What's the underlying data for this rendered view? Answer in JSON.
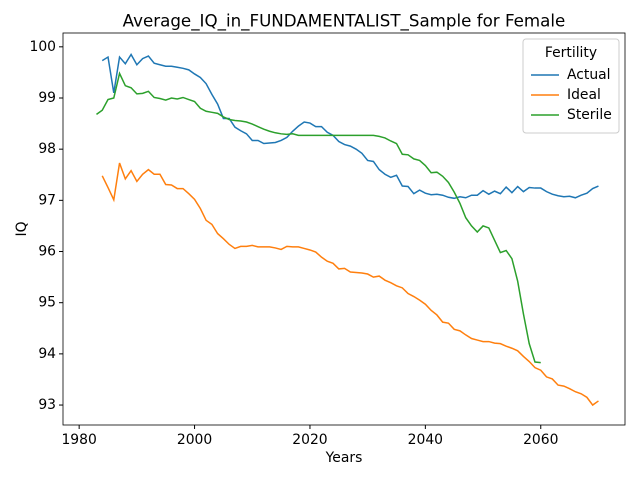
{
  "chart_data": {
    "type": "line",
    "title": "Average_IQ_in_FUNDAMENTALIST_Sample for Female",
    "xlabel": "Years",
    "ylabel": "IQ",
    "legend_title": "Fertility",
    "legend": "upper right",
    "xlim": [
      1977.2,
      2074.6
    ],
    "ylim": [
      92.61,
      100.27
    ],
    "xticks": [
      1980,
      2000,
      2020,
      2040,
      2060
    ],
    "yticks": [
      93,
      94,
      95,
      96,
      97,
      98,
      99,
      100
    ],
    "series": [
      {
        "name": "Actual",
        "color": "#1f77b4",
        "x": [
          1984,
          1985,
          1986,
          1987,
          1988,
          1989,
          1990,
          1991,
          1992,
          1993,
          1994,
          1995,
          1996,
          1997,
          1998,
          1999,
          2000,
          2001,
          2002,
          2003,
          2004,
          2005,
          2006,
          2007,
          2008,
          2009,
          2010,
          2011,
          2012,
          2013,
          2014,
          2015,
          2016,
          2017,
          2018,
          2019,
          2020,
          2021,
          2022,
          2023,
          2024,
          2025,
          2026,
          2027,
          2028,
          2029,
          2030,
          2031,
          2032,
          2033,
          2034,
          2035,
          2036,
          2037,
          2038,
          2039,
          2040,
          2041,
          2042,
          2043,
          2044,
          2045,
          2046,
          2047,
          2048,
          2049,
          2050,
          2051,
          2052,
          2053,
          2054,
          2055,
          2056,
          2057,
          2058,
          2059,
          2060,
          2061,
          2062,
          2063,
          2064,
          2065,
          2066,
          2067,
          2068,
          2069,
          2070
        ],
        "values": [
          99.73,
          99.8,
          99.1,
          99.8,
          99.67,
          99.85,
          99.65,
          99.77,
          99.82,
          99.68,
          99.65,
          99.62,
          99.62,
          99.6,
          99.58,
          99.55,
          99.47,
          99.4,
          99.28,
          99.07,
          98.88,
          98.6,
          98.6,
          98.43,
          98.36,
          98.3,
          98.17,
          98.17,
          98.11,
          98.12,
          98.13,
          98.17,
          98.23,
          98.35,
          98.45,
          98.53,
          98.51,
          98.44,
          98.44,
          98.33,
          98.27,
          98.15,
          98.09,
          98.06,
          98.0,
          97.92,
          97.78,
          97.76,
          97.6,
          97.51,
          97.45,
          97.49,
          97.28,
          97.27,
          97.13,
          97.2,
          97.14,
          97.11,
          97.12,
          97.1,
          97.06,
          97.04,
          97.07,
          97.05,
          97.1,
          97.1,
          97.19,
          97.12,
          97.18,
          97.13,
          97.26,
          97.15,
          97.27,
          97.17,
          97.25,
          97.24,
          97.24,
          97.17,
          97.12,
          97.09,
          97.07,
          97.08,
          97.05,
          97.1,
          97.14,
          97.23,
          97.28
        ]
      },
      {
        "name": "Ideal",
        "color": "#ff7f0e",
        "x": [
          1984,
          1985,
          1986,
          1987,
          1988,
          1989,
          1990,
          1991,
          1992,
          1993,
          1994,
          1995,
          1996,
          1997,
          1998,
          1999,
          2000,
          2001,
          2002,
          2003,
          2004,
          2005,
          2006,
          2007,
          2008,
          2009,
          2010,
          2011,
          2012,
          2013,
          2014,
          2015,
          2016,
          2017,
          2018,
          2019,
          2020,
          2021,
          2022,
          2023,
          2024,
          2025,
          2026,
          2027,
          2028,
          2029,
          2030,
          2031,
          2032,
          2033,
          2034,
          2035,
          2036,
          2037,
          2038,
          2039,
          2040,
          2041,
          2042,
          2043,
          2044,
          2045,
          2046,
          2047,
          2048,
          2049,
          2050,
          2051,
          2052,
          2053,
          2054,
          2055,
          2056,
          2057,
          2058,
          2059,
          2060,
          2061,
          2062,
          2063,
          2064,
          2065,
          2066,
          2067,
          2068,
          2069,
          2070
        ],
        "values": [
          97.48,
          97.25,
          97.01,
          97.73,
          97.42,
          97.58,
          97.37,
          97.51,
          97.6,
          97.51,
          97.51,
          97.31,
          97.3,
          97.23,
          97.23,
          97.13,
          97.02,
          96.84,
          96.61,
          96.53,
          96.35,
          96.25,
          96.14,
          96.06,
          96.1,
          96.1,
          96.12,
          96.09,
          96.09,
          96.09,
          96.07,
          96.04,
          96.1,
          96.09,
          96.09,
          96.06,
          96.03,
          95.99,
          95.89,
          95.81,
          95.77,
          95.66,
          95.67,
          95.6,
          95.59,
          95.58,
          95.56,
          95.5,
          95.52,
          95.44,
          95.39,
          95.33,
          95.29,
          95.18,
          95.12,
          95.05,
          94.97,
          94.85,
          94.76,
          94.62,
          94.6,
          94.48,
          94.45,
          94.37,
          94.3,
          94.27,
          94.24,
          94.24,
          94.21,
          94.2,
          94.15,
          94.11,
          94.06,
          93.95,
          93.85,
          93.73,
          93.68,
          93.55,
          93.51,
          93.39,
          93.37,
          93.32,
          93.26,
          93.22,
          93.15,
          93.0,
          93.08
        ]
      },
      {
        "name": "Sterile",
        "color": "#2ca02c",
        "x": [
          1983,
          1984,
          1985,
          1986,
          1987,
          1988,
          1989,
          1990,
          1991,
          1992,
          1993,
          1994,
          1995,
          1996,
          1997,
          1998,
          1999,
          2000,
          2001,
          2002,
          2003,
          2004,
          2005,
          2006,
          2007,
          2008,
          2009,
          2010,
          2011,
          2012,
          2013,
          2014,
          2015,
          2016,
          2017,
          2018,
          2019,
          2020,
          2021,
          2022,
          2023,
          2024,
          2025,
          2026,
          2027,
          2028,
          2029,
          2030,
          2031,
          2032,
          2033,
          2034,
          2035,
          2036,
          2037,
          2038,
          2039,
          2040,
          2041,
          2042,
          2043,
          2044,
          2045,
          2046,
          2047,
          2048,
          2049,
          2050,
          2051,
          2052,
          2053,
          2054,
          2055,
          2056,
          2057,
          2058,
          2059,
          2060
        ],
        "values": [
          98.68,
          98.76,
          98.97,
          99.0,
          99.48,
          99.24,
          99.2,
          99.08,
          99.09,
          99.13,
          99.01,
          98.99,
          98.96,
          99.0,
          98.98,
          99.01,
          98.97,
          98.93,
          98.8,
          98.74,
          98.72,
          98.7,
          98.63,
          98.58,
          98.56,
          98.55,
          98.53,
          98.49,
          98.44,
          98.39,
          98.35,
          98.32,
          98.3,
          98.29,
          98.3,
          98.27,
          98.27,
          98.27,
          98.27,
          98.27,
          98.27,
          98.27,
          98.27,
          98.27,
          98.27,
          98.27,
          98.27,
          98.27,
          98.27,
          98.25,
          98.22,
          98.16,
          98.11,
          97.9,
          97.89,
          97.81,
          97.78,
          97.68,
          97.54,
          97.55,
          97.47,
          97.35,
          97.16,
          96.94,
          96.66,
          96.5,
          96.38,
          96.5,
          96.46,
          96.22,
          95.98,
          96.02,
          95.86,
          95.42,
          94.78,
          94.2,
          93.84,
          93.83
        ]
      }
    ]
  }
}
